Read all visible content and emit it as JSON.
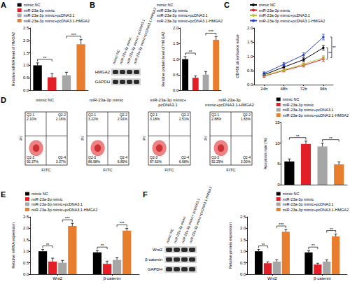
{
  "panel_labels": [
    "A",
    "B",
    "C",
    "D",
    "E",
    "F"
  ],
  "chart_data": [
    {
      "type": "bar",
      "ylabel": "Relative mRNA level of HMGA2",
      "categories": [
        "mimic NC",
        "miR-23a-3p mimic",
        "miR-23a-3p mimic+pcDNA3.1",
        "miR-23a-3p mimic+pcDNA3.1-HMGA2"
      ],
      "values": [
        1.0,
        0.52,
        0.6,
        1.85
      ],
      "errors": [
        0.1,
        0.15,
        0.12,
        0.18
      ],
      "colors": [
        "#000000",
        "#e41e26",
        "#a6a6a6",
        "#e87d2e"
      ],
      "ylim": [
        0,
        2.5
      ],
      "yticks": [
        {
          "value": 0,
          "label": "0.0"
        },
        {
          "value": 0.5,
          "label": "0.5"
        },
        {
          "value": 1,
          "label": "1.0"
        },
        {
          "value": 1.5,
          "label": "1.5"
        },
        {
          "value": 2,
          "label": "2.0"
        },
        {
          "value": 2.5,
          "label": "2.5"
        }
      ],
      "grid": false,
      "legend": "top-right",
      "tick_labels": "y",
      "annotations": [
        {
          "text": "**",
          "between": [
            "mimic NC",
            "miR-23a-3p mimic"
          ]
        },
        {
          "text": "***",
          "between": [
            "miR-23a-3p mimic+pcDNA3.1",
            "miR-23a-3p mimic+pcDNA3.1-HMGA2"
          ]
        }
      ]
    },
    {
      "type": "bar",
      "ylabel": "Relative protein level of HMGA2",
      "categories": [
        "mimic NC",
        "miR-23a-3p mimic",
        "miR-23a-3p mimic+pcDNA3.1",
        "miR-23a-3p mimic+pcDNA3.1-HMGA2"
      ],
      "values": [
        1.0,
        0.4,
        0.5,
        1.62
      ],
      "errors": [
        0.08,
        0.06,
        0.1,
        0.1
      ],
      "colors": [
        "#000000",
        "#e41e26",
        "#a6a6a6",
        "#e87d2e"
      ],
      "ylim": [
        0,
        2
      ],
      "yticks": [
        {
          "value": 0,
          "label": "0.0"
        },
        {
          "value": 0.5,
          "label": "0.5"
        },
        {
          "value": 1,
          "label": "1.0"
        },
        {
          "value": 1.5,
          "label": "1.5"
        },
        {
          "value": 2,
          "label": "2.0"
        }
      ],
      "grid": false,
      "legend": "top-right",
      "tick_labels": "y",
      "annotations": [
        {
          "text": "**",
          "between": [
            "mimic NC",
            "miR-23a-3p mimic"
          ]
        },
        {
          "text": "***",
          "between": [
            "miR-23a-3p mimic+pcDNA3.1",
            "miR-23a-3p mimic+pcDNA3.1-HMGA2"
          ]
        }
      ]
    },
    {
      "type": "line",
      "ylabel": "OD450 absorbance value",
      "categories": [
        "24h",
        "48h",
        "72h",
        "96h"
      ],
      "series": [
        {
          "name": "mimic NC",
          "color": "#000000",
          "values": [
            0.35,
            0.62,
            0.88,
            1.3
          ],
          "errors": [
            0.04,
            0.05,
            0.06,
            0.08
          ]
        },
        {
          "name": "miR-23a-3p mimic",
          "color": "#e41e26",
          "values": [
            0.3,
            0.5,
            0.68,
            0.9
          ],
          "errors": [
            0.04,
            0.05,
            0.06,
            0.08
          ]
        },
        {
          "name": "miR-23a-3p mimic+pcDNA3.1",
          "color": "#b5c637",
          "values": [
            0.32,
            0.52,
            0.72,
            0.95
          ],
          "errors": [
            0.04,
            0.05,
            0.06,
            0.08
          ]
        },
        {
          "name": "miR-23a-3p mimic+pcDNA3.1-HMGA2",
          "color": "#2a46c8",
          "values": [
            0.4,
            0.72,
            1.05,
            1.68
          ],
          "errors": [
            0.05,
            0.06,
            0.08,
            0.1
          ]
        }
      ],
      "ylim": [
        0,
        2
      ],
      "yticks": [
        {
          "value": 0,
          "label": "0.0"
        },
        {
          "value": 0.5,
          "label": "0.5"
        },
        {
          "value": 1,
          "label": "1.0"
        },
        {
          "value": 1.5,
          "label": "1.5"
        },
        {
          "value": 2,
          "label": "2.0"
        }
      ],
      "grid": false,
      "legend": "top-left",
      "marker": "circle",
      "annotations": [
        {
          "text": "**",
          "category": "96h",
          "between": [
            "mimic NC",
            "miR-23a-3p mimic"
          ]
        },
        {
          "text": "**",
          "category": "96h",
          "between": [
            "miR-23a-3p mimic+pcDNA3.1",
            "miR-23a-3p mimic+pcDNA3.1-HMGA2"
          ]
        }
      ]
    },
    {
      "type": "bar",
      "ylabel": "Apoptosis rate (%)",
      "categories": [
        "mimic NC",
        "miR-23a-3p mimic",
        "miR-23a-3p mimic+pcDNA3.1",
        "miR-23a-3p mimic+pcDNA3.1-HMGA2"
      ],
      "values": [
        5.6,
        9.8,
        9.2,
        4.9
      ],
      "errors": [
        0.6,
        0.7,
        0.8,
        0.6
      ],
      "colors": [
        "#000000",
        "#e41e26",
        "#a6a6a6",
        "#e87d2e"
      ],
      "ylim": [
        0,
        15
      ],
      "yticks": [
        0,
        5,
        10,
        15
      ],
      "grid": false,
      "legend": "top-right",
      "tick_labels": "y",
      "annotations": [
        {
          "text": "**",
          "between": [
            "mimic NC",
            "miR-23a-3p mimic"
          ]
        },
        {
          "text": "**",
          "between": [
            "miR-23a-3p mimic+pcDNA3.1",
            "miR-23a-3p mimic+pcDNA3.1-HMGA2"
          ]
        }
      ]
    },
    {
      "type": "bar",
      "ylabel": "Relative mRNA expression",
      "categories": [
        "Wnt2",
        "β-catenin"
      ],
      "series": [
        {
          "name": "mimic NC",
          "color": "#000000",
          "values": [
            1.0,
            0.95
          ],
          "errors": [
            0.08,
            0.08
          ]
        },
        {
          "name": "miR-23a-3p mimic",
          "color": "#e41e26",
          "values": [
            0.55,
            0.45
          ],
          "errors": [
            0.15,
            0.12
          ]
        },
        {
          "name": "miR-23a-3p mimic+pcDNA3.1",
          "color": "#a6a6a6",
          "values": [
            0.5,
            0.62
          ],
          "errors": [
            0.1,
            0.1
          ]
        },
        {
          "name": "miR-23a-3p mimic+pcDNA3.1-HMGA2",
          "color": "#e87d2e",
          "values": [
            2.1,
            1.9
          ],
          "errors": [
            0.12,
            0.1
          ]
        }
      ],
      "ylim": [
        0,
        2.5
      ],
      "yticks": [
        {
          "value": 0,
          "label": "0.0"
        },
        {
          "value": 0.5,
          "label": "0.5"
        },
        {
          "value": 1,
          "label": "1.0"
        },
        {
          "value": 1.5,
          "label": "1.5"
        },
        {
          "value": 2,
          "label": "2.0"
        },
        {
          "value": 2.5,
          "label": "2.5"
        }
      ],
      "grid": false,
      "legend": "top-left",
      "annotations": [
        {
          "text": "**",
          "category": "Wnt2",
          "between": [
            "mimic NC",
            "miR-23a-3p mimic"
          ]
        },
        {
          "text": "***",
          "category": "Wnt2",
          "between": [
            "miR-23a-3p mimic+pcDNA3.1",
            "miR-23a-3p mimic+pcDNA3.1-HMGA2"
          ]
        },
        {
          "text": "**",
          "category": "β-catenin",
          "between": [
            "mimic NC",
            "miR-23a-3p mimic"
          ]
        },
        {
          "text": "***",
          "category": "β-catenin",
          "between": [
            "miR-23a-3p mimic+pcDNA3.1",
            "miR-23a-3p mimic+pcDNA3.1-HMGA2"
          ]
        }
      ]
    },
    {
      "type": "bar",
      "ylabel": "Relative protein expression",
      "categories": [
        "Wnt2",
        "β-catenin"
      ],
      "series": [
        {
          "name": "mimic NC",
          "color": "#000000",
          "values": [
            1.0,
            0.95
          ],
          "errors": [
            0.08,
            0.08
          ]
        },
        {
          "name": "miR-23a-3p mimic",
          "color": "#e41e26",
          "values": [
            0.48,
            0.42
          ],
          "errors": [
            0.06,
            0.06
          ]
        },
        {
          "name": "miR-23a-3p mimic+pcDNA3.1",
          "color": "#a6a6a6",
          "values": [
            0.55,
            0.55
          ],
          "errors": [
            0.08,
            0.08
          ]
        },
        {
          "name": "miR-23a-3p mimic+pcDNA3.1-HMGA2",
          "color": "#e87d2e",
          "values": [
            1.85,
            1.65
          ],
          "errors": [
            0.1,
            0.1
          ]
        }
      ],
      "ylim": [
        0,
        2.5
      ],
      "yticks": [
        {
          "value": 0,
          "label": "0.0"
        },
        {
          "value": 0.5,
          "label": "0.5"
        },
        {
          "value": 1,
          "label": "1.0"
        },
        {
          "value": 1.5,
          "label": "1.5"
        },
        {
          "value": 2,
          "label": "2.0"
        },
        {
          "value": 2.5,
          "label": "2.5"
        }
      ],
      "grid": false,
      "legend": "top-right",
      "annotations": [
        {
          "text": "**",
          "category": "Wnt2",
          "between": [
            "mimic NC",
            "miR-23a-3p mimic"
          ]
        },
        {
          "text": "***",
          "category": "Wnt2",
          "between": [
            "miR-23a-3p mimic+pcDNA3.1",
            "miR-23a-3p mimic+pcDNA3.1-HMGA2"
          ]
        },
        {
          "text": "**",
          "category": "β-catenin",
          "between": [
            "mimic NC",
            "miR-23a-3p mimic"
          ]
        },
        {
          "text": "**",
          "category": "β-catenin",
          "between": [
            "miR-23a-3p mimic+pcDNA3.1",
            "miR-23a-3p mimic+pcDNA3.1-HMGA2"
          ]
        }
      ]
    }
  ],
  "blots": [
    {
      "lanes": [
        "mimic NC",
        "miR-23a-3p mimic",
        "miR-23a-3p mimic+ pcDNA3.1",
        "miR-23a-3p mimic+pcDNA3.1-HMGA2"
      ],
      "rows": [
        "HMGA2",
        "GAPDH"
      ]
    },
    {
      "lanes": [
        "mimic NC",
        "miR-23a-3p mimic",
        "miR-23a-3p mimic+ pcDNA3.1",
        "miR-23a-3p mimic+pcDNA3.1-HMGA2"
      ],
      "rows": [
        "Wnt2",
        "β-catenin",
        "GAPDH"
      ]
    }
  ],
  "flow_cytometry": {
    "xlabel": "FITC",
    "ylabel": "PI",
    "plots": [
      {
        "title": "mimic NC",
        "quadrants": [
          {
            "name": "Q2-1",
            "label": "2.10%"
          },
          {
            "name": "Q2-2",
            "label": "2.16%"
          },
          {
            "name": "Q2-3",
            "label": "92.37%"
          },
          {
            "name": "Q2-4",
            "label": "3.37%"
          }
        ]
      },
      {
        "title": "miR-23a-3p mimic",
        "quadrants": [
          {
            "name": "Q2-1",
            "label": "3.22%"
          },
          {
            "name": "Q2-2",
            "label": "2.91%"
          },
          {
            "name": "Q2-3",
            "label": "86.98%"
          },
          {
            "name": "Q2-4",
            "label": "6.89%"
          }
        ]
      },
      {
        "title": "miR-23a-3p mimic+ pcDNA3.1",
        "quadrants": [
          {
            "name": "Q2-1",
            "label": "3.18%"
          },
          {
            "name": "Q2-2",
            "label": "2.51%"
          },
          {
            "name": "Q2-3",
            "label": "87.63%"
          },
          {
            "name": "Q2-4",
            "label": "6.68%"
          }
        ]
      },
      {
        "title": "miR-23a-3p mimic+pcDNA3.1-HMGA2",
        "quadrants": [
          {
            "name": "Q2-1",
            "label": "2.88%"
          },
          {
            "name": "Q2-2",
            "label": "1.83%"
          },
          {
            "name": "Q2-3",
            "label": "92.29%"
          },
          {
            "name": "Q2-4",
            "label": "3.00%"
          }
        ]
      }
    ]
  }
}
